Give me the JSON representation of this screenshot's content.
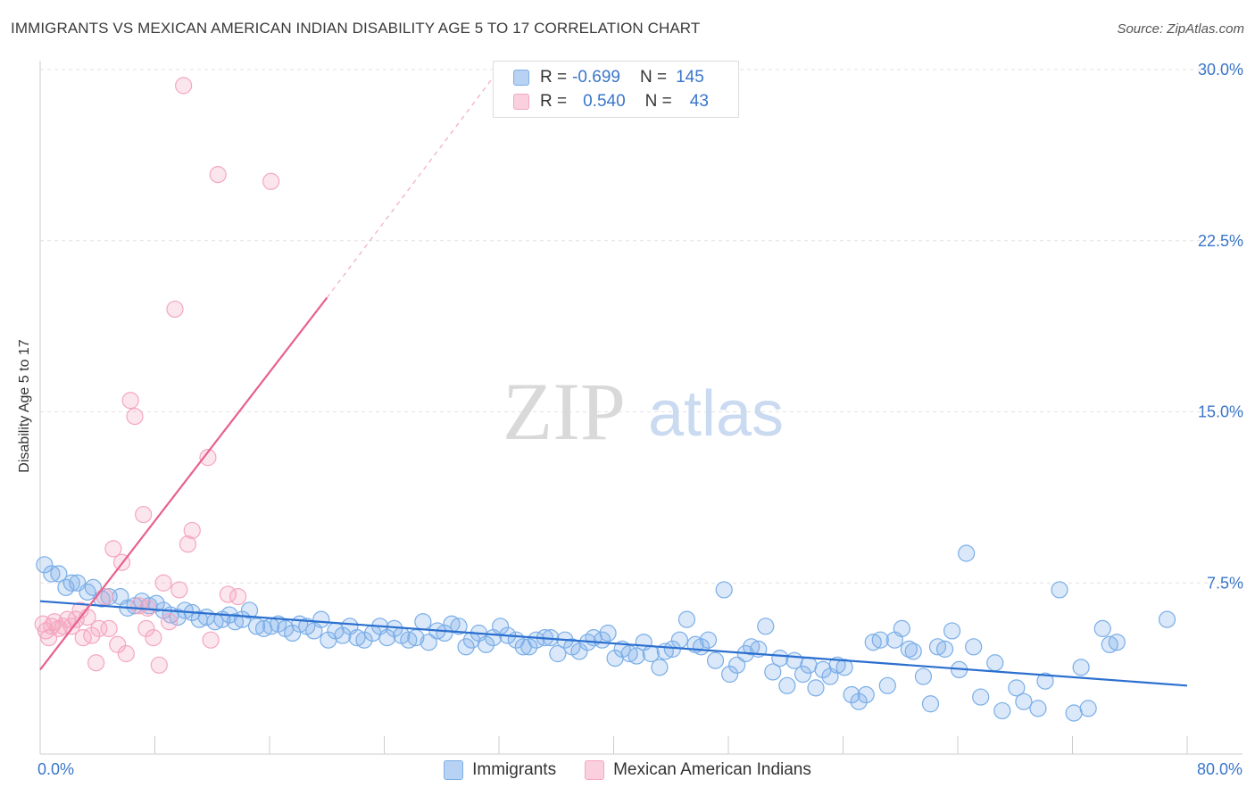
{
  "title": "IMMIGRANTS VS MEXICAN AMERICAN INDIAN DISABILITY AGE 5 TO 17 CORRELATION CHART",
  "source": "Source: ZipAtlas.com",
  "watermark": {
    "zip": "ZIP",
    "atlas": "atlas"
  },
  "legend": {
    "rows": [
      {
        "r_label": "R =",
        "r_value": "-0.699",
        "n_label": "N =",
        "n_value": "145"
      },
      {
        "r_label": "R =",
        "r_value": "0.540",
        "n_label": "N =",
        "n_value": "43"
      }
    ]
  },
  "chart_data": {
    "type": "scatter",
    "ylabel": "Disability Age 5 to 17",
    "xlabel": "",
    "x_tick_labels": [
      "0.0%",
      "80.0%"
    ],
    "y_tick_labels": [
      "7.5%",
      "15.0%",
      "22.5%",
      "30.0%"
    ],
    "xlim": [
      0,
      80
    ],
    "ylim": [
      0,
      30
    ],
    "y_ticks": [
      7.5,
      15.0,
      22.5,
      30.0
    ],
    "grid": "horizontal dashed",
    "legend_position": "bottom-center",
    "series": [
      {
        "name": "Immigrants",
        "color": "#7aaee8",
        "line_color": "#2b6fcf",
        "R": -0.699,
        "N": 145,
        "trend": {
          "x": [
            0,
            80
          ],
          "y": [
            6.7,
            3.0
          ]
        },
        "points": [
          [
            0.3,
            8.3
          ],
          [
            0.8,
            7.9
          ],
          [
            1.3,
            7.9
          ],
          [
            1.8,
            7.3
          ],
          [
            2.2,
            7.5
          ],
          [
            2.6,
            7.5
          ],
          [
            3.3,
            7.1
          ],
          [
            3.7,
            7.3
          ],
          [
            4.3,
            6.8
          ],
          [
            4.8,
            6.9
          ],
          [
            5.6,
            6.9
          ],
          [
            6.1,
            6.4
          ],
          [
            6.6,
            6.5
          ],
          [
            7.1,
            6.7
          ],
          [
            7.6,
            6.5
          ],
          [
            8.1,
            6.6
          ],
          [
            8.6,
            6.3
          ],
          [
            9.1,
            6.1
          ],
          [
            9.6,
            6.0
          ],
          [
            10.1,
            6.3
          ],
          [
            10.6,
            6.2
          ],
          [
            11.1,
            5.9
          ],
          [
            11.6,
            6.0
          ],
          [
            12.2,
            5.8
          ],
          [
            12.7,
            5.9
          ],
          [
            13.2,
            6.1
          ],
          [
            13.6,
            5.8
          ],
          [
            14.1,
            5.9
          ],
          [
            14.6,
            6.3
          ],
          [
            15.1,
            5.6
          ],
          [
            15.6,
            5.5
          ],
          [
            16.1,
            5.6
          ],
          [
            16.6,
            5.7
          ],
          [
            17.1,
            5.5
          ],
          [
            17.6,
            5.3
          ],
          [
            18.1,
            5.7
          ],
          [
            18.6,
            5.6
          ],
          [
            19.1,
            5.4
          ],
          [
            19.6,
            5.9
          ],
          [
            20.1,
            5.0
          ],
          [
            20.6,
            5.4
          ],
          [
            21.1,
            5.2
          ],
          [
            21.6,
            5.6
          ],
          [
            22.1,
            5.1
          ],
          [
            22.6,
            5.0
          ],
          [
            23.2,
            5.3
          ],
          [
            23.7,
            5.6
          ],
          [
            24.2,
            5.1
          ],
          [
            24.7,
            5.5
          ],
          [
            25.2,
            5.2
          ],
          [
            25.7,
            5.0
          ],
          [
            26.2,
            5.1
          ],
          [
            26.7,
            5.8
          ],
          [
            27.1,
            4.9
          ],
          [
            27.7,
            5.4
          ],
          [
            28.2,
            5.3
          ],
          [
            28.7,
            5.7
          ],
          [
            29.2,
            5.6
          ],
          [
            29.7,
            4.7
          ],
          [
            30.1,
            5.0
          ],
          [
            30.6,
            5.3
          ],
          [
            31.1,
            4.8
          ],
          [
            31.6,
            5.1
          ],
          [
            32.1,
            5.6
          ],
          [
            32.6,
            5.2
          ],
          [
            33.2,
            5.0
          ],
          [
            33.7,
            4.7
          ],
          [
            34.1,
            4.7
          ],
          [
            34.6,
            5.0
          ],
          [
            35.2,
            5.1
          ],
          [
            35.6,
            5.1
          ],
          [
            36.1,
            4.4
          ],
          [
            36.6,
            5.0
          ],
          [
            37.1,
            4.7
          ],
          [
            37.6,
            4.5
          ],
          [
            38.2,
            4.9
          ],
          [
            38.6,
            5.1
          ],
          [
            39.2,
            5.0
          ],
          [
            39.6,
            5.3
          ],
          [
            40.1,
            4.2
          ],
          [
            40.6,
            4.6
          ],
          [
            41.1,
            4.4
          ],
          [
            41.6,
            4.3
          ],
          [
            42.1,
            4.9
          ],
          [
            42.6,
            4.4
          ],
          [
            43.2,
            3.8
          ],
          [
            43.6,
            4.5
          ],
          [
            44.1,
            4.6
          ],
          [
            44.6,
            5.0
          ],
          [
            45.1,
            5.9
          ],
          [
            45.7,
            4.8
          ],
          [
            46.1,
            4.7
          ],
          [
            46.6,
            5.0
          ],
          [
            47.1,
            4.1
          ],
          [
            47.7,
            7.2
          ],
          [
            48.1,
            3.5
          ],
          [
            48.6,
            3.9
          ],
          [
            49.2,
            4.4
          ],
          [
            49.6,
            4.7
          ],
          [
            50.1,
            4.6
          ],
          [
            50.6,
            5.6
          ],
          [
            51.1,
            3.6
          ],
          [
            51.6,
            4.2
          ],
          [
            52.1,
            3.0
          ],
          [
            52.6,
            4.1
          ],
          [
            53.2,
            3.5
          ],
          [
            53.6,
            3.9
          ],
          [
            54.1,
            2.9
          ],
          [
            54.6,
            3.7
          ],
          [
            55.1,
            3.4
          ],
          [
            55.6,
            3.9
          ],
          [
            56.1,
            3.8
          ],
          [
            56.6,
            2.6
          ],
          [
            57.1,
            2.3
          ],
          [
            57.6,
            2.6
          ],
          [
            58.1,
            4.9
          ],
          [
            58.6,
            5.0
          ],
          [
            59.1,
            3.0
          ],
          [
            59.6,
            5.0
          ],
          [
            60.1,
            5.5
          ],
          [
            60.6,
            4.6
          ],
          [
            60.9,
            4.5
          ],
          [
            61.6,
            3.4
          ],
          [
            62.1,
            2.2
          ],
          [
            62.6,
            4.7
          ],
          [
            63.1,
            4.6
          ],
          [
            63.6,
            5.4
          ],
          [
            64.1,
            3.7
          ],
          [
            64.6,
            8.8
          ],
          [
            65.1,
            4.7
          ],
          [
            65.6,
            2.5
          ],
          [
            66.6,
            4.0
          ],
          [
            67.1,
            1.9
          ],
          [
            68.1,
            2.9
          ],
          [
            68.6,
            2.3
          ],
          [
            69.6,
            2.0
          ],
          [
            70.1,
            3.2
          ],
          [
            71.1,
            7.2
          ],
          [
            72.1,
            1.8
          ],
          [
            72.6,
            3.8
          ],
          [
            73.1,
            2.0
          ],
          [
            74.1,
            5.5
          ],
          [
            74.6,
            4.8
          ],
          [
            75.1,
            4.9
          ],
          [
            78.6,
            5.9
          ]
        ]
      },
      {
        "name": "Mexican American Indians",
        "color": "#f4a6bf",
        "line_color": "#e8608e",
        "R": 0.54,
        "N": 43,
        "trend": {
          "x": [
            0,
            20
          ],
          "y": [
            3.7,
            20.0
          ],
          "dashed_extension_to": [
            32,
            30.0
          ]
        },
        "points": [
          [
            0.2,
            5.7
          ],
          [
            0.4,
            5.4
          ],
          [
            0.6,
            5.1
          ],
          [
            0.8,
            5.6
          ],
          [
            1.0,
            5.8
          ],
          [
            1.3,
            5.5
          ],
          [
            1.6,
            5.6
          ],
          [
            1.9,
            5.9
          ],
          [
            2.2,
            5.6
          ],
          [
            2.5,
            5.9
          ],
          [
            2.8,
            6.3
          ],
          [
            3.0,
            5.1
          ],
          [
            3.3,
            6.0
          ],
          [
            3.6,
            5.2
          ],
          [
            3.9,
            4.0
          ],
          [
            4.1,
            5.5
          ],
          [
            4.5,
            6.9
          ],
          [
            4.8,
            5.5
          ],
          [
            5.1,
            9.0
          ],
          [
            5.4,
            4.8
          ],
          [
            5.7,
            8.4
          ],
          [
            6.0,
            4.4
          ],
          [
            6.3,
            15.5
          ],
          [
            6.6,
            14.8
          ],
          [
            6.9,
            6.5
          ],
          [
            7.2,
            10.5
          ],
          [
            7.5,
            6.4
          ],
          [
            7.9,
            5.1
          ],
          [
            7.4,
            5.5
          ],
          [
            8.3,
            3.9
          ],
          [
            8.6,
            7.5
          ],
          [
            9.0,
            5.8
          ],
          [
            9.4,
            19.5
          ],
          [
            9.7,
            7.2
          ],
          [
            10.0,
            29.3
          ],
          [
            10.3,
            9.2
          ],
          [
            10.6,
            9.8
          ],
          [
            11.7,
            13.0
          ],
          [
            11.9,
            5.0
          ],
          [
            12.4,
            25.4
          ],
          [
            13.1,
            7.0
          ],
          [
            13.8,
            6.9
          ],
          [
            16.1,
            25.1
          ]
        ]
      }
    ]
  }
}
